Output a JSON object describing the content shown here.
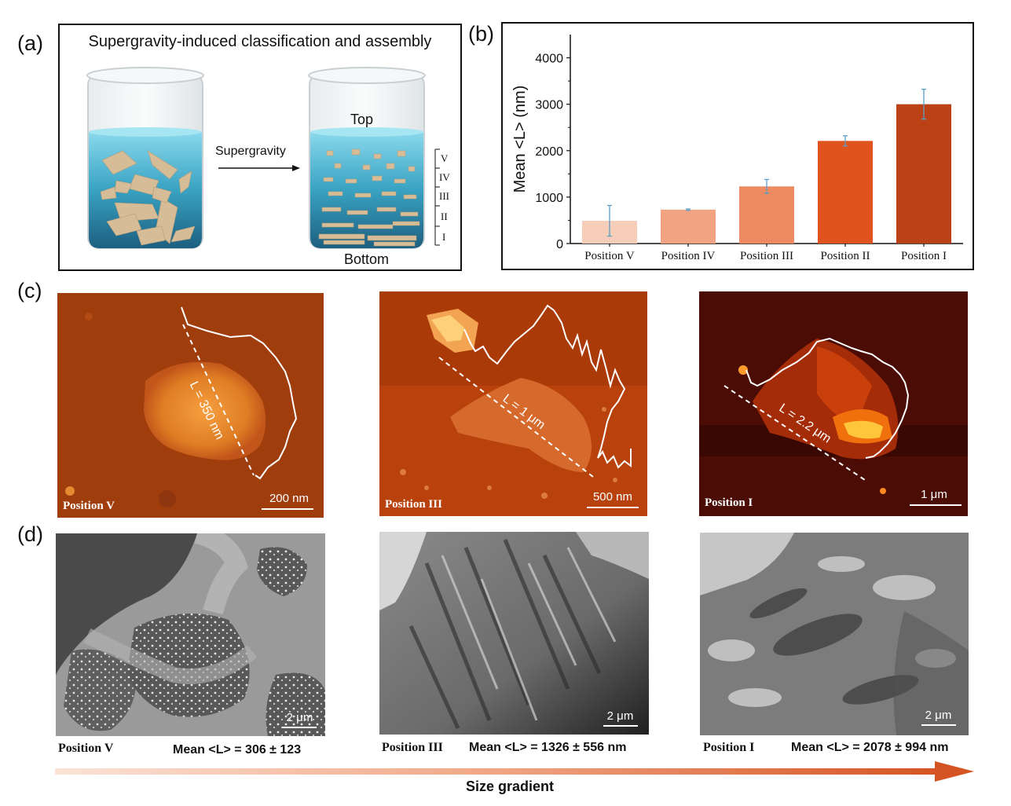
{
  "panel_labels": {
    "a": "(a)",
    "b": "(b)",
    "c": "(c)",
    "d": "(d)"
  },
  "panel_a": {
    "title": "Supergravity-induced  classification and assembly",
    "arrow_label": "Supergravity",
    "top_label": "Top",
    "bottom_label": "Bottom",
    "layer_labels": [
      "V",
      "IV",
      "III",
      "II",
      "I"
    ]
  },
  "chart_data": {
    "type": "bar",
    "categories": [
      "Position V",
      "Position IV",
      "Position III",
      "Position II",
      "Position I"
    ],
    "values": [
      490,
      730,
      1230,
      2210,
      3000
    ],
    "errors": [
      330,
      15,
      150,
      110,
      320
    ],
    "ylabel": "Mean <L> (nm)",
    "ylim": [
      0,
      4500
    ],
    "yticks": [
      0,
      1000,
      2000,
      3000,
      4000
    ],
    "colors": [
      "#f6cdb8",
      "#f2a482",
      "#ee8a5f",
      "#e0521e",
      "#bb4117"
    ],
    "error_color": "#5aa0c8",
    "grid": false
  },
  "panel_c": [
    {
      "position": "Position V",
      "length_label": "L = 350 nm",
      "scale": "200 nm"
    },
    {
      "position": "Position III",
      "length_label": "L = 1 μm",
      "scale": "500 nm"
    },
    {
      "position": "Position I",
      "length_label": "L = 2.2 μm",
      "scale": "1 μm"
    }
  ],
  "panel_d": [
    {
      "position": "Position V",
      "mean": "Mean <L> = 306 ± 123",
      "scale": "2 μm"
    },
    {
      "position": "Position III",
      "mean": "Mean <L> = 1326 ± 556 nm",
      "scale": "2 μm"
    },
    {
      "position": "Position I",
      "mean": "Mean <L> = 2078 ± 994 nm",
      "scale": "2 μm"
    }
  ],
  "gradient_label": "Size gradient"
}
